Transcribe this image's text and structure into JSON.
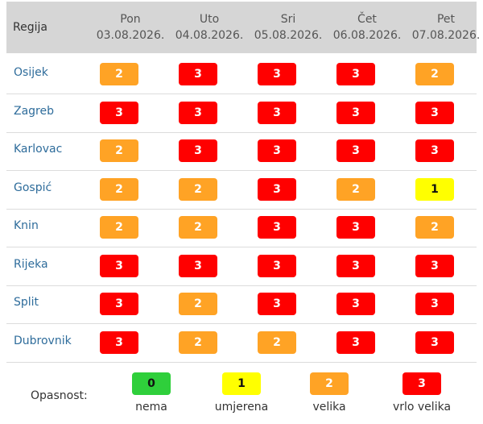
{
  "header": {
    "region_label": "Regija",
    "days": [
      {
        "name": "Pon",
        "date": "03.08.2026."
      },
      {
        "name": "Uto",
        "date": "04.08.2026."
      },
      {
        "name": "Sri",
        "date": "05.08.2026."
      },
      {
        "name": "Čet",
        "date": "06.08.2026."
      },
      {
        "name": "Pet",
        "date": "07.08.2026."
      }
    ]
  },
  "rows": [
    {
      "region": "Osijek",
      "levels": [
        "2",
        "3",
        "3",
        "3",
        "2"
      ]
    },
    {
      "region": "Zagreb",
      "levels": [
        "3",
        "3",
        "3",
        "3",
        "3"
      ]
    },
    {
      "region": "Karlovac",
      "levels": [
        "2",
        "3",
        "3",
        "3",
        "3"
      ]
    },
    {
      "region": "Gospić",
      "levels": [
        "2",
        "2",
        "3",
        "2",
        "1"
      ]
    },
    {
      "region": "Knin",
      "levels": [
        "2",
        "2",
        "3",
        "3",
        "2"
      ]
    },
    {
      "region": "Rijeka",
      "levels": [
        "3",
        "3",
        "3",
        "3",
        "3"
      ]
    },
    {
      "region": "Split",
      "levels": [
        "3",
        "2",
        "3",
        "3",
        "3"
      ]
    },
    {
      "region": "Dubrovnik",
      "levels": [
        "3",
        "2",
        "2",
        "3",
        "3"
      ]
    }
  ],
  "legend": {
    "title": "Opasnost:",
    "items": [
      {
        "value": "0",
        "label": "nema"
      },
      {
        "value": "1",
        "label": "umjerena"
      },
      {
        "value": "2",
        "label": "velika"
      },
      {
        "value": "3",
        "label": "vrlo velika"
      }
    ]
  },
  "colors": {
    "level_0": "#2fcf3b",
    "level_1": "#ffff00",
    "level_2": "#ffa325",
    "level_3": "#ff0000",
    "region_link": "#2e6c9b",
    "header_bg": "#d6d6d6"
  }
}
